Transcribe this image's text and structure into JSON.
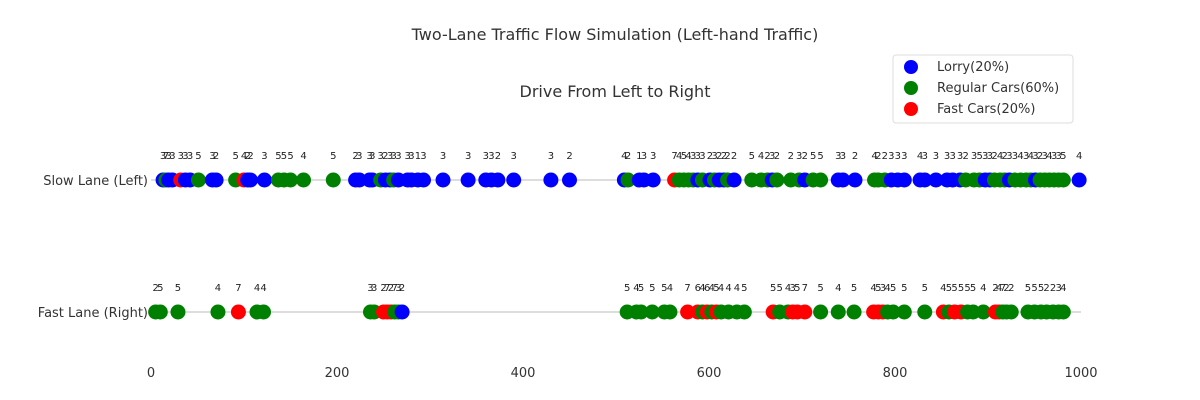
{
  "chart_data": {
    "type": "scatter",
    "title": "Two-Lane Traffic Flow Simulation (Left-hand Traffic)",
    "subtitle": "Drive From Left to Right",
    "xlim": [
      0,
      1000
    ],
    "xticks": [
      0,
      200,
      400,
      600,
      800,
      1000
    ],
    "lanes": [
      "Slow Lane (Left)",
      "Fast Lane (Right)"
    ],
    "legend": {
      "position": "top-right",
      "entries": [
        {
          "type": "lorry",
          "label": "Lorry(20%)",
          "color": "#0000ff"
        },
        {
          "type": "regular",
          "label": "Regular Cars(60%)",
          "color": "#008000"
        },
        {
          "type": "fast",
          "label": "Fast Cars(20%)",
          "color": "#ff0000"
        }
      ]
    },
    "vehicles": [
      {
        "lane": 0,
        "x": 13,
        "type": "lorry",
        "speed": 3
      },
      {
        "lane": 0,
        "x": 16,
        "type": "regular",
        "speed": 7
      },
      {
        "lane": 0,
        "x": 19,
        "type": "lorry",
        "speed": 3
      },
      {
        "lane": 0,
        "x": 23,
        "type": "lorry",
        "speed": 3
      },
      {
        "lane": 0,
        "x": 32,
        "type": "fast",
        "speed": 3
      },
      {
        "lane": 0,
        "x": 37,
        "type": "lorry",
        "speed": 3
      },
      {
        "lane": 0,
        "x": 42,
        "type": "lorry",
        "speed": 3
      },
      {
        "lane": 0,
        "x": 51,
        "type": "regular",
        "speed": 5
      },
      {
        "lane": 0,
        "x": 66,
        "type": "lorry",
        "speed": 3
      },
      {
        "lane": 0,
        "x": 70,
        "type": "lorry",
        "speed": 2
      },
      {
        "lane": 0,
        "x": 91,
        "type": "regular",
        "speed": 5
      },
      {
        "lane": 0,
        "x": 100,
        "type": "fast",
        "speed": 4
      },
      {
        "lane": 0,
        "x": 104,
        "type": "lorry",
        "speed": 2
      },
      {
        "lane": 0,
        "x": 107,
        "type": "lorry",
        "speed": 2
      },
      {
        "lane": 0,
        "x": 122,
        "type": "lorry",
        "speed": 3
      },
      {
        "lane": 0,
        "x": 137,
        "type": "regular",
        "speed": 5
      },
      {
        "lane": 0,
        "x": 143,
        "type": "regular",
        "speed": 5
      },
      {
        "lane": 0,
        "x": 150,
        "type": "regular",
        "speed": 5
      },
      {
        "lane": 0,
        "x": 164,
        "type": "regular",
        "speed": 4
      },
      {
        "lane": 0,
        "x": 196,
        "type": "regular",
        "speed": 5
      },
      {
        "lane": 0,
        "x": 220,
        "type": "lorry",
        "speed": 2
      },
      {
        "lane": 0,
        "x": 224,
        "type": "lorry",
        "speed": 3
      },
      {
        "lane": 0,
        "x": 235,
        "type": "lorry",
        "speed": 3
      },
      {
        "lane": 0,
        "x": 238,
        "type": "lorry",
        "speed": 3
      },
      {
        "lane": 0,
        "x": 247,
        "type": "regular",
        "speed": 3
      },
      {
        "lane": 0,
        "x": 252,
        "type": "lorry",
        "speed": 2
      },
      {
        "lane": 0,
        "x": 257,
        "type": "lorry",
        "speed": 3
      },
      {
        "lane": 0,
        "x": 261,
        "type": "regular",
        "speed": 3
      },
      {
        "lane": 0,
        "x": 266,
        "type": "lorry",
        "speed": 3
      },
      {
        "lane": 0,
        "x": 276,
        "type": "lorry",
        "speed": 3
      },
      {
        "lane": 0,
        "x": 280,
        "type": "lorry",
        "speed": 3
      },
      {
        "lane": 0,
        "x": 287,
        "type": "lorry",
        "speed": 1
      },
      {
        "lane": 0,
        "x": 293,
        "type": "lorry",
        "speed": 3
      },
      {
        "lane": 0,
        "x": 314,
        "type": "lorry",
        "speed": 3
      },
      {
        "lane": 0,
        "x": 341,
        "type": "lorry",
        "speed": 3
      },
      {
        "lane": 0,
        "x": 360,
        "type": "lorry",
        "speed": 3
      },
      {
        "lane": 0,
        "x": 366,
        "type": "lorry",
        "speed": 3
      },
      {
        "lane": 0,
        "x": 373,
        "type": "lorry",
        "speed": 2
      },
      {
        "lane": 0,
        "x": 390,
        "type": "lorry",
        "speed": 3
      },
      {
        "lane": 0,
        "x": 430,
        "type": "lorry",
        "speed": 3
      },
      {
        "lane": 0,
        "x": 450,
        "type": "lorry",
        "speed": 2
      },
      {
        "lane": 0,
        "x": 509,
        "type": "lorry",
        "speed": 4
      },
      {
        "lane": 0,
        "x": 513,
        "type": "regular",
        "speed": 2
      },
      {
        "lane": 0,
        "x": 525,
        "type": "lorry",
        "speed": 1
      },
      {
        "lane": 0,
        "x": 530,
        "type": "lorry",
        "speed": 3
      },
      {
        "lane": 0,
        "x": 540,
        "type": "lorry",
        "speed": 3
      },
      {
        "lane": 0,
        "x": 563,
        "type": "fast",
        "speed": 7
      },
      {
        "lane": 0,
        "x": 568,
        "type": "regular",
        "speed": 4
      },
      {
        "lane": 0,
        "x": 573,
        "type": "regular",
        "speed": 5
      },
      {
        "lane": 0,
        "x": 578,
        "type": "regular",
        "speed": 4
      },
      {
        "lane": 0,
        "x": 583,
        "type": "regular",
        "speed": 3
      },
      {
        "lane": 0,
        "x": 588,
        "type": "lorry",
        "speed": 3
      },
      {
        "lane": 0,
        "x": 593,
        "type": "regular",
        "speed": 3
      },
      {
        "lane": 0,
        "x": 601,
        "type": "lorry",
        "speed": 2
      },
      {
        "lane": 0,
        "x": 606,
        "type": "regular",
        "speed": 3
      },
      {
        "lane": 0,
        "x": 611,
        "type": "lorry",
        "speed": 2
      },
      {
        "lane": 0,
        "x": 616,
        "type": "lorry",
        "speed": 2
      },
      {
        "lane": 0,
        "x": 620,
        "type": "regular",
        "speed": 2
      },
      {
        "lane": 0,
        "x": 627,
        "type": "lorry",
        "speed": 2
      },
      {
        "lane": 0,
        "x": 646,
        "type": "regular",
        "speed": 5
      },
      {
        "lane": 0,
        "x": 656,
        "type": "regular",
        "speed": 4
      },
      {
        "lane": 0,
        "x": 663,
        "type": "regular",
        "speed": 2
      },
      {
        "lane": 0,
        "x": 668,
        "type": "lorry",
        "speed": 3
      },
      {
        "lane": 0,
        "x": 673,
        "type": "regular",
        "speed": 2
      },
      {
        "lane": 0,
        "x": 688,
        "type": "regular",
        "speed": 2
      },
      {
        "lane": 0,
        "x": 697,
        "type": "regular",
        "speed": 3
      },
      {
        "lane": 0,
        "x": 703,
        "type": "lorry",
        "speed": 2
      },
      {
        "lane": 0,
        "x": 712,
        "type": "regular",
        "speed": 5
      },
      {
        "lane": 0,
        "x": 720,
        "type": "regular",
        "speed": 5
      },
      {
        "lane": 0,
        "x": 739,
        "type": "lorry",
        "speed": 3
      },
      {
        "lane": 0,
        "x": 744,
        "type": "lorry",
        "speed": 3
      },
      {
        "lane": 0,
        "x": 757,
        "type": "lorry",
        "speed": 2
      },
      {
        "lane": 0,
        "x": 778,
        "type": "regular",
        "speed": 4
      },
      {
        "lane": 0,
        "x": 782,
        "type": "regular",
        "speed": 2
      },
      {
        "lane": 0,
        "x": 789,
        "type": "regular",
        "speed": 2
      },
      {
        "lane": 0,
        "x": 796,
        "type": "lorry",
        "speed": 3
      },
      {
        "lane": 0,
        "x": 803,
        "type": "lorry",
        "speed": 3
      },
      {
        "lane": 0,
        "x": 810,
        "type": "lorry",
        "speed": 3
      },
      {
        "lane": 0,
        "x": 827,
        "type": "lorry",
        "speed": 4
      },
      {
        "lane": 0,
        "x": 832,
        "type": "lorry",
        "speed": 3
      },
      {
        "lane": 0,
        "x": 844,
        "type": "lorry",
        "speed": 3
      },
      {
        "lane": 0,
        "x": 856,
        "type": "lorry",
        "speed": 3
      },
      {
        "lane": 0,
        "x": 862,
        "type": "lorry",
        "speed": 3
      },
      {
        "lane": 0,
        "x": 870,
        "type": "lorry",
        "speed": 3
      },
      {
        "lane": 0,
        "x": 876,
        "type": "regular",
        "speed": 2
      },
      {
        "lane": 0,
        "x": 885,
        "type": "regular",
        "speed": 3
      },
      {
        "lane": 0,
        "x": 891,
        "type": "regular",
        "speed": 5
      },
      {
        "lane": 0,
        "x": 897,
        "type": "lorry",
        "speed": 3
      },
      {
        "lane": 0,
        "x": 902,
        "type": "lorry",
        "speed": 3
      },
      {
        "lane": 0,
        "x": 907,
        "type": "regular",
        "speed": 2
      },
      {
        "lane": 0,
        "x": 913,
        "type": "regular",
        "speed": 4
      },
      {
        "lane": 0,
        "x": 918,
        "type": "regular",
        "speed": 2
      },
      {
        "lane": 0,
        "x": 923,
        "type": "lorry",
        "speed": 3
      },
      {
        "lane": 0,
        "x": 929,
        "type": "regular",
        "speed": 3
      },
      {
        "lane": 0,
        "x": 935,
        "type": "regular",
        "speed": 4
      },
      {
        "lane": 0,
        "x": 941,
        "type": "regular",
        "speed": 3
      },
      {
        "lane": 0,
        "x": 946,
        "type": "regular",
        "speed": 4
      },
      {
        "lane": 0,
        "x": 951,
        "type": "lorry",
        "speed": 3
      },
      {
        "lane": 0,
        "x": 956,
        "type": "regular",
        "speed": 2
      },
      {
        "lane": 0,
        "x": 961,
        "type": "regular",
        "speed": 3
      },
      {
        "lane": 0,
        "x": 966,
        "type": "regular",
        "speed": 4
      },
      {
        "lane": 0,
        "x": 971,
        "type": "regular",
        "speed": 3
      },
      {
        "lane": 0,
        "x": 976,
        "type": "regular",
        "speed": 3
      },
      {
        "lane": 0,
        "x": 981,
        "type": "regular",
        "speed": 5
      },
      {
        "lane": 0,
        "x": 998,
        "type": "lorry",
        "speed": 4
      },
      {
        "lane": 1,
        "x": 5,
        "type": "regular",
        "speed": 2
      },
      {
        "lane": 1,
        "x": 10,
        "type": "regular",
        "speed": 5
      },
      {
        "lane": 1,
        "x": 29,
        "type": "regular",
        "speed": 5
      },
      {
        "lane": 1,
        "x": 72,
        "type": "regular",
        "speed": 4
      },
      {
        "lane": 1,
        "x": 94,
        "type": "fast",
        "speed": 7
      },
      {
        "lane": 1,
        "x": 114,
        "type": "regular",
        "speed": 4
      },
      {
        "lane": 1,
        "x": 121,
        "type": "regular",
        "speed": 4
      },
      {
        "lane": 1,
        "x": 236,
        "type": "regular",
        "speed": 3
      },
      {
        "lane": 1,
        "x": 240,
        "type": "regular",
        "speed": 3
      },
      {
        "lane": 1,
        "x": 250,
        "type": "fast",
        "speed": 2
      },
      {
        "lane": 1,
        "x": 254,
        "type": "fast",
        "speed": 7
      },
      {
        "lane": 1,
        "x": 258,
        "type": "fast",
        "speed": 2
      },
      {
        "lane": 1,
        "x": 262,
        "type": "regular",
        "speed": 7
      },
      {
        "lane": 1,
        "x": 266,
        "type": "regular",
        "speed": 3
      },
      {
        "lane": 1,
        "x": 270,
        "type": "lorry",
        "speed": 2
      },
      {
        "lane": 1,
        "x": 512,
        "type": "regular",
        "speed": 5
      },
      {
        "lane": 1,
        "x": 522,
        "type": "regular",
        "speed": 4
      },
      {
        "lane": 1,
        "x": 527,
        "type": "regular",
        "speed": 5
      },
      {
        "lane": 1,
        "x": 539,
        "type": "regular",
        "speed": 5
      },
      {
        "lane": 1,
        "x": 552,
        "type": "regular",
        "speed": 5
      },
      {
        "lane": 1,
        "x": 558,
        "type": "regular",
        "speed": 4
      },
      {
        "lane": 1,
        "x": 577,
        "type": "fast",
        "speed": 7
      },
      {
        "lane": 1,
        "x": 588,
        "type": "fast",
        "speed": 6
      },
      {
        "lane": 1,
        "x": 593,
        "type": "regular",
        "speed": 4
      },
      {
        "lane": 1,
        "x": 598,
        "type": "fast",
        "speed": 6
      },
      {
        "lane": 1,
        "x": 603,
        "type": "regular",
        "speed": 4
      },
      {
        "lane": 1,
        "x": 608,
        "type": "fast",
        "speed": 5
      },
      {
        "lane": 1,
        "x": 613,
        "type": "regular",
        "speed": 4
      },
      {
        "lane": 1,
        "x": 621,
        "type": "regular",
        "speed": 4
      },
      {
        "lane": 1,
        "x": 630,
        "type": "regular",
        "speed": 4
      },
      {
        "lane": 1,
        "x": 638,
        "type": "regular",
        "speed": 5
      },
      {
        "lane": 1,
        "x": 669,
        "type": "fast",
        "speed": 5
      },
      {
        "lane": 1,
        "x": 676,
        "type": "regular",
        "speed": 5
      },
      {
        "lane": 1,
        "x": 685,
        "type": "regular",
        "speed": 4
      },
      {
        "lane": 1,
        "x": 690,
        "type": "fast",
        "speed": 3
      },
      {
        "lane": 1,
        "x": 695,
        "type": "fast",
        "speed": 5
      },
      {
        "lane": 1,
        "x": 703,
        "type": "fast",
        "speed": 7
      },
      {
        "lane": 1,
        "x": 720,
        "type": "regular",
        "speed": 5
      },
      {
        "lane": 1,
        "x": 739,
        "type": "regular",
        "speed": 4
      },
      {
        "lane": 1,
        "x": 756,
        "type": "regular",
        "speed": 5
      },
      {
        "lane": 1,
        "x": 777,
        "type": "fast",
        "speed": 4
      },
      {
        "lane": 1,
        "x": 782,
        "type": "fast",
        "speed": 5
      },
      {
        "lane": 1,
        "x": 787,
        "type": "fast",
        "speed": 3
      },
      {
        "lane": 1,
        "x": 792,
        "type": "regular",
        "speed": 4
      },
      {
        "lane": 1,
        "x": 798,
        "type": "regular",
        "speed": 5
      },
      {
        "lane": 1,
        "x": 810,
        "type": "regular",
        "speed": 5
      },
      {
        "lane": 1,
        "x": 832,
        "type": "regular",
        "speed": 5
      },
      {
        "lane": 1,
        "x": 852,
        "type": "fast",
        "speed": 4
      },
      {
        "lane": 1,
        "x": 858,
        "type": "regular",
        "speed": 5
      },
      {
        "lane": 1,
        "x": 864,
        "type": "fast",
        "speed": 5
      },
      {
        "lane": 1,
        "x": 871,
        "type": "fast",
        "speed": 5
      },
      {
        "lane": 1,
        "x": 878,
        "type": "regular",
        "speed": 5
      },
      {
        "lane": 1,
        "x": 884,
        "type": "regular",
        "speed": 5
      },
      {
        "lane": 1,
        "x": 895,
        "type": "regular",
        "speed": 4
      },
      {
        "lane": 1,
        "x": 908,
        "type": "fast",
        "speed": 2
      },
      {
        "lane": 1,
        "x": 912,
        "type": "fast",
        "speed": 4
      },
      {
        "lane": 1,
        "x": 916,
        "type": "regular",
        "speed": 7
      },
      {
        "lane": 1,
        "x": 920,
        "type": "regular",
        "speed": 2
      },
      {
        "lane": 1,
        "x": 925,
        "type": "regular",
        "speed": 2
      },
      {
        "lane": 1,
        "x": 943,
        "type": "regular",
        "speed": 5
      },
      {
        "lane": 1,
        "x": 950,
        "type": "regular",
        "speed": 5
      },
      {
        "lane": 1,
        "x": 957,
        "type": "regular",
        "speed": 5
      },
      {
        "lane": 1,
        "x": 963,
        "type": "regular",
        "speed": 2
      },
      {
        "lane": 1,
        "x": 970,
        "type": "regular",
        "speed": 2
      },
      {
        "lane": 1,
        "x": 976,
        "type": "regular",
        "speed": 3
      },
      {
        "lane": 1,
        "x": 981,
        "type": "regular",
        "speed": 4
      }
    ]
  }
}
